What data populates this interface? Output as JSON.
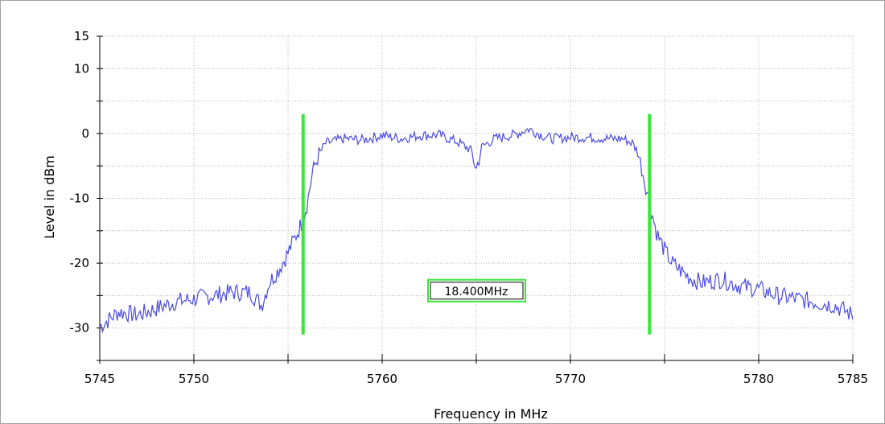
{
  "chart_data": {
    "type": "line",
    "title": "",
    "xlabel": "Frequency in MHz",
    "ylabel": "Level in dBm",
    "xlim": [
      5745,
      5785
    ],
    "ylim": [
      -35,
      15
    ],
    "grid": true,
    "x_ticks": [
      5745,
      5750,
      5755,
      5760,
      5765,
      5770,
      5775,
      5780,
      5785
    ],
    "x_tick_labels": [
      "5745",
      "5750",
      "",
      "5760",
      "",
      "5770",
      "",
      "5780",
      "5785"
    ],
    "y_ticks": [
      -35,
      -30,
      -25,
      -20,
      -15,
      -10,
      -5,
      0,
      5,
      10,
      15
    ],
    "y_tick_labels": [
      "",
      "-30",
      "",
      "-20",
      "",
      "-10",
      "",
      "0",
      "",
      "10",
      "15"
    ],
    "series": [
      {
        "color": "#4b4be6",
        "x": [
          5745.0,
          5746.0,
          5747.0,
          5748.0,
          5749.0,
          5750.0,
          5751.0,
          5752.0,
          5753.0,
          5753.6,
          5754.0,
          5754.5,
          5754.9,
          5755.3,
          5755.7,
          5756.0,
          5756.3,
          5756.6,
          5757.0,
          5758.0,
          5759.0,
          5760.0,
          5761.0,
          5762.0,
          5763.0,
          5764.0,
          5764.7,
          5765.0,
          5765.3,
          5766.0,
          5767.0,
          5767.8,
          5768.5,
          5769.0,
          5770.0,
          5771.0,
          5772.0,
          5772.8,
          5773.3,
          5773.6,
          5774.0,
          5774.3,
          5774.6,
          5775.0,
          5775.4,
          5776.0,
          5776.5,
          5777.0,
          5778.0,
          5779.0,
          5780.0,
          5781.0,
          5782.0,
          5783.0,
          5784.0,
          5785.0
        ],
        "y": [
          -29.8,
          -27.5,
          -28,
          -27,
          -26,
          -25.5,
          -25,
          -24.5,
          -24.5,
          -26.5,
          -23,
          -21,
          -19,
          -16.5,
          -14,
          -11,
          -6,
          -3.5,
          -1.5,
          -0.8,
          -1,
          -0.3,
          -0.8,
          -0.3,
          -0.2,
          -1.3,
          -2.5,
          -5.5,
          -2,
          -0.8,
          -0.2,
          0.7,
          -0.3,
          -0.8,
          -0.6,
          -0.6,
          -0.8,
          -0.8,
          -1.5,
          -3,
          -8,
          -12,
          -15.5,
          -18,
          -20,
          -21.5,
          -22.5,
          -23,
          -22.5,
          -23.5,
          -24,
          -25,
          -25.5,
          -26,
          -26.5,
          -28
        ]
      }
    ],
    "markers": [
      {
        "x": 5755.8,
        "y_top": 3,
        "y_bottom": -31,
        "color": "#3ae63a"
      },
      {
        "x": 5774.2,
        "y_top": 3,
        "y_bottom": -31,
        "color": "#3ae63a"
      }
    ],
    "annotation": {
      "text": "18.400MHz",
      "x": 5765,
      "y": -24.3
    }
  }
}
